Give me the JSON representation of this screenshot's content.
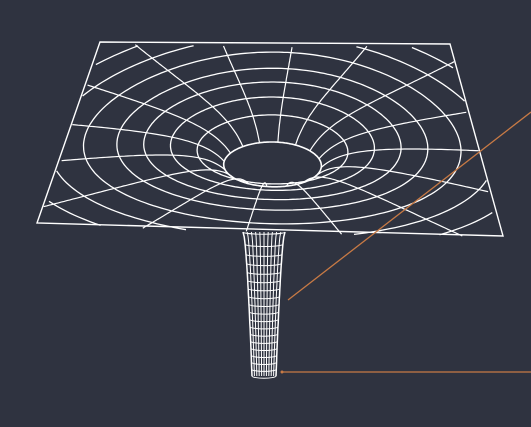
{
  "colors": {
    "background": "#2f3340",
    "frame": "#ffffff",
    "mesh": "#ffffff",
    "leader": "#c87a45"
  },
  "figure": {
    "subject": "gravity-well-wireframe-funnel",
    "sheet_rings": 8,
    "sheet_radial_lines": 16,
    "tube_vertical_lines": 10,
    "tube_horizontal_rings": 18,
    "leader_lines": 2
  }
}
